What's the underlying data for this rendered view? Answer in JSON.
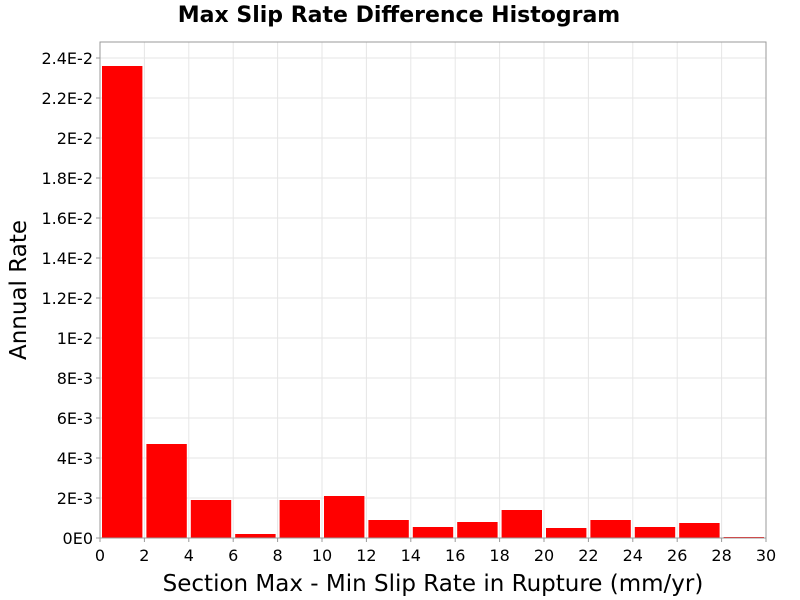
{
  "chart_data": {
    "type": "bar",
    "title": "Max Slip Rate Difference Histogram",
    "xlabel": "Section Max - Min Slip Rate in Rupture (mm/yr)",
    "ylabel": "Annual Rate",
    "xlim": [
      0,
      30
    ],
    "ylim": [
      0,
      0.0248
    ],
    "bin_width": 2,
    "x_ticks": [
      {
        "value": 0,
        "label": "0"
      },
      {
        "value": 2,
        "label": "2"
      },
      {
        "value": 4,
        "label": "4"
      },
      {
        "value": 6,
        "label": "6"
      },
      {
        "value": 8,
        "label": "8"
      },
      {
        "value": 10,
        "label": "10"
      },
      {
        "value": 12,
        "label": "12"
      },
      {
        "value": 14,
        "label": "14"
      },
      {
        "value": 16,
        "label": "16"
      },
      {
        "value": 18,
        "label": "18"
      },
      {
        "value": 20,
        "label": "20"
      },
      {
        "value": 22,
        "label": "22"
      },
      {
        "value": 24,
        "label": "24"
      },
      {
        "value": 26,
        "label": "26"
      },
      {
        "value": 28,
        "label": "28"
      },
      {
        "value": 30,
        "label": "30"
      }
    ],
    "y_ticks": [
      {
        "value": 0,
        "label": "0E0"
      },
      {
        "value": 0.002,
        "label": "2E-3"
      },
      {
        "value": 0.004,
        "label": "4E-3"
      },
      {
        "value": 0.006,
        "label": "6E-3"
      },
      {
        "value": 0.008,
        "label": "8E-3"
      },
      {
        "value": 0.01,
        "label": "1E-2"
      },
      {
        "value": 0.012,
        "label": "1.2E-2"
      },
      {
        "value": 0.014,
        "label": "1.4E-2"
      },
      {
        "value": 0.016,
        "label": "1.6E-2"
      },
      {
        "value": 0.018,
        "label": "1.8E-2"
      },
      {
        "value": 0.02,
        "label": "2E-2"
      },
      {
        "value": 0.022,
        "label": "2.2E-2"
      },
      {
        "value": 0.024,
        "label": "2.4E-2"
      }
    ],
    "bins": [
      {
        "x_start": 0,
        "x_end": 2,
        "value": 0.0236
      },
      {
        "x_start": 2,
        "x_end": 4,
        "value": 0.0047
      },
      {
        "x_start": 4,
        "x_end": 6,
        "value": 0.0019
      },
      {
        "x_start": 6,
        "x_end": 8,
        "value": 0.0002
      },
      {
        "x_start": 8,
        "x_end": 10,
        "value": 0.0019
      },
      {
        "x_start": 10,
        "x_end": 12,
        "value": 0.0021
      },
      {
        "x_start": 12,
        "x_end": 14,
        "value": 0.0009
      },
      {
        "x_start": 14,
        "x_end": 16,
        "value": 0.00055
      },
      {
        "x_start": 16,
        "x_end": 18,
        "value": 0.0008
      },
      {
        "x_start": 18,
        "x_end": 20,
        "value": 0.0014
      },
      {
        "x_start": 20,
        "x_end": 22,
        "value": 0.0005
      },
      {
        "x_start": 22,
        "x_end": 24,
        "value": 0.0009
      },
      {
        "x_start": 24,
        "x_end": 26,
        "value": 0.00055
      },
      {
        "x_start": 26,
        "x_end": 28,
        "value": 0.00075
      },
      {
        "x_start": 28,
        "x_end": 30,
        "value": 5e-05
      }
    ],
    "bar_color": "#ff0000",
    "grid": true,
    "legend": "none"
  }
}
